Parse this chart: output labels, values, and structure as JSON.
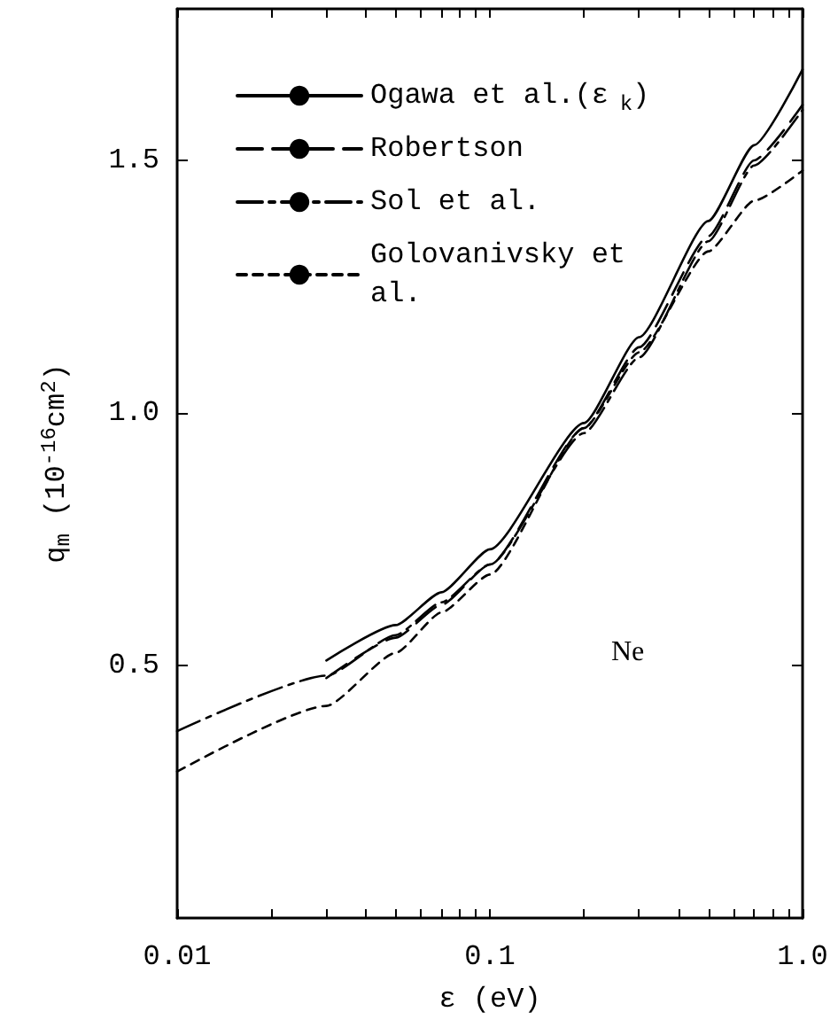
{
  "chart_data": {
    "type": "line",
    "xlabel": "ε (eV)",
    "ylabel": "q$_{m}$ (10$^{-16}$cm$^{2}$)",
    "log": "x",
    "xlim": [
      0.01,
      1.0
    ],
    "ylim": [
      0,
      1.8
    ],
    "xticks": [
      0.01,
      {
        "value": 0.02,
        "label": null
      },
      {
        "value": 0.03,
        "label": null
      },
      {
        "value": 0.04,
        "label": null
      },
      {
        "value": 0.05,
        "label": null
      },
      {
        "value": 0.06,
        "label": null
      },
      {
        "value": 0.07,
        "label": null
      },
      {
        "value": 0.08,
        "label": null
      },
      {
        "value": 0.09,
        "label": null
      },
      0.1,
      {
        "value": 0.2,
        "label": null
      },
      {
        "value": 0.3,
        "label": null
      },
      {
        "value": 0.4,
        "label": null
      },
      {
        "value": 0.5,
        "label": null
      },
      {
        "value": 0.6,
        "label": null
      },
      {
        "value": 0.7,
        "label": null
      },
      {
        "value": 0.8,
        "label": null
      },
      {
        "value": 0.9,
        "label": null
      },
      {
        "value": 1.0,
        "label": "1.0"
      }
    ],
    "yticks": [
      0.5,
      {
        "value": 1.0,
        "label": "1.0"
      },
      1.5
    ],
    "grid": false,
    "legend": "top left",
    "marker": "none",
    "annotations": [
      "Ne"
    ],
    "series": [
      {
        "name": "Ogawa et al.(ε$_{k}$)",
        "color": "#000000",
        "line_style": "solid",
        "x": [
          0.03,
          0.05,
          0.07,
          0.1,
          0.2,
          0.3,
          0.5,
          0.7,
          1.0
        ],
        "values": [
          0.51,
          0.58,
          0.645,
          0.73,
          0.98,
          1.15,
          1.38,
          1.53,
          1.68
        ]
      },
      {
        "name": "Robertson",
        "color": "#000000",
        "line_style": "dashed",
        "x": [
          0.03,
          0.05,
          0.07,
          0.1,
          0.2,
          0.3,
          0.5,
          0.7,
          1.0
        ],
        "values": [
          0.475,
          0.555,
          0.62,
          0.7,
          0.97,
          1.13,
          1.35,
          1.5,
          1.61
        ]
      },
      {
        "name": "Sol et al.",
        "color": "#000000",
        "line_style": "dashdot",
        "x": [
          0.01,
          0.03,
          0.05,
          0.07,
          0.1,
          0.2,
          0.3,
          0.5,
          0.7,
          1.0
        ],
        "values": [
          0.37,
          0.48,
          0.56,
          0.625,
          0.7,
          0.96,
          1.11,
          1.34,
          1.49,
          1.6
        ]
      },
      {
        "name": "Golovanivsky et al.",
        "color": "#000000",
        "line_style": "dotted",
        "x": [
          0.01,
          0.03,
          0.05,
          0.07,
          0.1,
          0.2,
          0.3,
          0.5,
          0.7,
          1.0
        ],
        "values": [
          0.29,
          0.42,
          0.525,
          0.605,
          0.68,
          0.97,
          1.12,
          1.32,
          1.42,
          1.48
        ]
      }
    ]
  }
}
